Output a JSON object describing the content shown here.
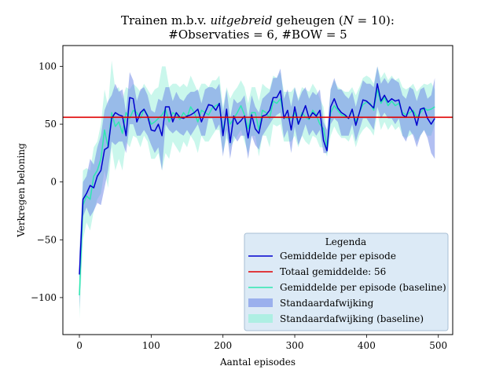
{
  "chart_data": {
    "type": "line",
    "title_line1_prefix": "Trainen m.b.v. ",
    "title_line1_italic": "uitgebreid",
    "title_line1_suffix": " geheugen (",
    "title_line1_var": "N",
    "title_line1_end": " = 10):",
    "title_line2": "#Observaties = 6, #BOW = 5",
    "xlabel": "Aantal episodes",
    "ylabel": "Verkregen beloning",
    "xlim": [
      -23,
      520
    ],
    "ylim": [
      -132,
      118
    ],
    "x_ticks": [
      0,
      100,
      200,
      300,
      400,
      500
    ],
    "y_ticks": [
      -100,
      -50,
      0,
      50,
      100
    ],
    "y_tick_labels": [
      "−100",
      "−50",
      "0",
      "50",
      "100"
    ],
    "grid": false,
    "legend": {
      "title": "Legenda",
      "placement": "lower-right",
      "entries": [
        "Gemiddelde per episode",
        "Totaal gemiddelde: 56",
        "Gemiddelde per episode (baseline)",
        "Standaardafwijking",
        "Standaardafwijking (baseline)"
      ]
    },
    "colors": {
      "mean": "#0000cd",
      "total_mean": "#e00000",
      "baseline": "#2ee8b0",
      "std_fill": "#6680e6",
      "baseline_std_fill": "#9ff0dc",
      "legend_bg": "#dceaf6",
      "legend_border": "#a8bfd4"
    },
    "total_mean": 56,
    "x": [
      0,
      5,
      10,
      15,
      20,
      25,
      30,
      35,
      40,
      45,
      50,
      55,
      60,
      65,
      70,
      75,
      80,
      85,
      90,
      95,
      100,
      105,
      110,
      115,
      120,
      125,
      130,
      135,
      140,
      145,
      150,
      155,
      160,
      165,
      170,
      175,
      180,
      185,
      190,
      195,
      200,
      205,
      210,
      215,
      220,
      225,
      230,
      235,
      240,
      245,
      250,
      255,
      260,
      265,
      270,
      275,
      280,
      285,
      290,
      295,
      300,
      305,
      310,
      315,
      320,
      325,
      330,
      335,
      340,
      345,
      350,
      355,
      360,
      365,
      370,
      375,
      380,
      385,
      390,
      395,
      400,
      405,
      410,
      415,
      420,
      425,
      430,
      435,
      440,
      445,
      450,
      455,
      460,
      465,
      470,
      475,
      480,
      485,
      490,
      495
    ],
    "series": [
      {
        "name": "Gemiddelde per episode",
        "values": [
          -80,
          -15,
          -10,
          -3,
          -5,
          5,
          10,
          28,
          30,
          55,
          60,
          58,
          57,
          40,
          73,
          72,
          52,
          60,
          63,
          57,
          45,
          44,
          50,
          40,
          65,
          65,
          52,
          60,
          56,
          55,
          57,
          58,
          60,
          63,
          52,
          60,
          67,
          66,
          62,
          68,
          40,
          63,
          34,
          57,
          50,
          53,
          57,
          38,
          58,
          46,
          42,
          57,
          58,
          62,
          73,
          73,
          79,
          55,
          62,
          45,
          65,
          50,
          58,
          66,
          55,
          60,
          57,
          62,
          36,
          27,
          65,
          72,
          64,
          60,
          58,
          55,
          63,
          49,
          60,
          71,
          70,
          67,
          64,
          85,
          70,
          75,
          69,
          72,
          70,
          71,
          58,
          56,
          65,
          60,
          49,
          63,
          64,
          55,
          50,
          55
        ],
        "std_lower": [
          -110,
          -30,
          -22,
          -30,
          -25,
          -18,
          -20,
          -5,
          10,
          35,
          32,
          35,
          35,
          25,
          50,
          50,
          40,
          40,
          45,
          40,
          32,
          25,
          30,
          10,
          50,
          45,
          42,
          45,
          42,
          40,
          45,
          40,
          45,
          50,
          40,
          40,
          55,
          55,
          45,
          50,
          22,
          45,
          20,
          40,
          35,
          40,
          40,
          20,
          40,
          32,
          28,
          40,
          45,
          50,
          55,
          58,
          60,
          38,
          45,
          25,
          48,
          32,
          40,
          50,
          40,
          45,
          40,
          45,
          25,
          25,
          50,
          55,
          52,
          40,
          40,
          40,
          50,
          35,
          45,
          55,
          55,
          50,
          45,
          65,
          55,
          60,
          55,
          55,
          50,
          55,
          40,
          35,
          45,
          40,
          30,
          40,
          45,
          38,
          25,
          20
        ],
        "std_upper": [
          -60,
          0,
          5,
          20,
          15,
          30,
          40,
          62,
          70,
          75,
          85,
          78,
          80,
          60,
          95,
          88,
          70,
          80,
          82,
          75,
          62,
          60,
          72,
          70,
          82,
          82,
          70,
          78,
          72,
          70,
          75,
          78,
          78,
          80,
          68,
          80,
          82,
          82,
          80,
          85,
          60,
          80,
          55,
          72,
          68,
          70,
          75,
          55,
          75,
          65,
          60,
          72,
          75,
          78,
          90,
          90,
          98,
          72,
          80,
          65,
          82,
          70,
          78,
          82,
          72,
          78,
          75,
          80,
          52,
          45,
          80,
          90,
          80,
          80,
          75,
          72,
          78,
          65,
          78,
          88,
          85,
          85,
          82,
          100,
          85,
          90,
          85,
          90,
          88,
          86,
          75,
          72,
          82,
          80,
          70,
          80,
          82,
          72,
          75,
          90
        ]
      },
      {
        "name": "Gemiddelde per episode (baseline)",
        "values": [
          -98,
          -20,
          -12,
          -15,
          5,
          10,
          20,
          45,
          30,
          60,
          48,
          52,
          42,
          60,
          55,
          62,
          60,
          55,
          63,
          58,
          50,
          52,
          55,
          58,
          63,
          52,
          60,
          58,
          54,
          60,
          56,
          65,
          60,
          52,
          62,
          60,
          58,
          64,
          66,
          68,
          44,
          60,
          50,
          55,
          60,
          66,
          58,
          46,
          60,
          60,
          45,
          62,
          60,
          55,
          70,
          68,
          72,
          56,
          55,
          55,
          60,
          50,
          60,
          56,
          54,
          62,
          58,
          50,
          46,
          30,
          60,
          66,
          62,
          58,
          57,
          55,
          62,
          52,
          60,
          67,
          69,
          68,
          62,
          80,
          68,
          73,
          66,
          70,
          66,
          68,
          60,
          58,
          60,
          62,
          56,
          60,
          64,
          62,
          63,
          65
        ],
        "std_lower": [
          -118,
          -50,
          -35,
          -42,
          -25,
          -15,
          -10,
          10,
          -5,
          30,
          10,
          20,
          10,
          35,
          30,
          40,
          38,
          30,
          40,
          35,
          20,
          20,
          25,
          10,
          25,
          20,
          35,
          30,
          25,
          35,
          30,
          40,
          35,
          25,
          40,
          35,
          35,
          40,
          45,
          45,
          25,
          38,
          30,
          35,
          40,
          45,
          35,
          25,
          40,
          40,
          22,
          40,
          40,
          30,
          50,
          48,
          50,
          35,
          35,
          35,
          40,
          30,
          40,
          35,
          32,
          40,
          38,
          30,
          30,
          22,
          40,
          48,
          42,
          38,
          38,
          35,
          42,
          30,
          40,
          45,
          48,
          45,
          40,
          60,
          45,
          52,
          45,
          50,
          45,
          48,
          40,
          38,
          40,
          42,
          35,
          40,
          45,
          40,
          40,
          50
        ],
        "std_upper": [
          -80,
          10,
          12,
          10,
          30,
          35,
          50,
          80,
          65,
          105,
          80,
          82,
          72,
          82,
          80,
          85,
          82,
          78,
          85,
          80,
          75,
          80,
          82,
          100,
          100,
          82,
          85,
          85,
          82,
          85,
          82,
          92,
          85,
          78,
          85,
          85,
          82,
          88,
          88,
          92,
          65,
          82,
          72,
          78,
          82,
          88,
          82,
          68,
          82,
          82,
          70,
          85,
          82,
          80,
          92,
          90,
          95,
          78,
          78,
          78,
          82,
          72,
          82,
          80,
          78,
          85,
          80,
          72,
          65,
          40,
          80,
          88,
          82,
          80,
          78,
          78,
          82,
          75,
          82,
          90,
          92,
          90,
          85,
          100,
          90,
          95,
          88,
          92,
          88,
          90,
          82,
          80,
          82,
          85,
          78,
          82,
          85,
          84,
          86,
          80
        ]
      }
    ]
  }
}
